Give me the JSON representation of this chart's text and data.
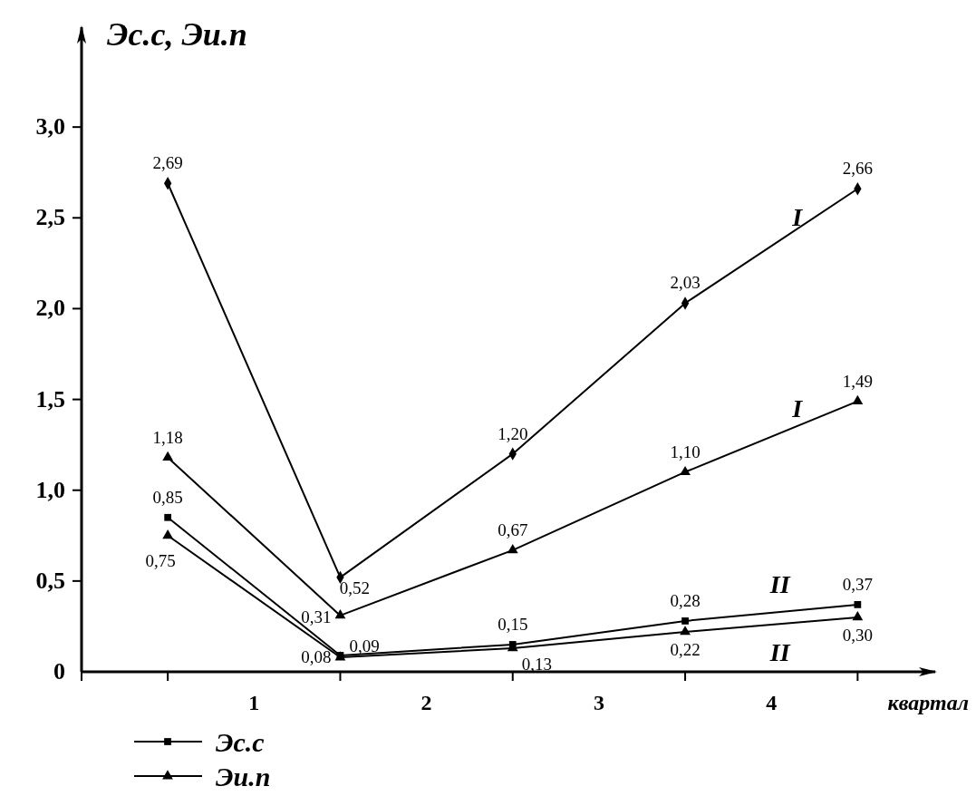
{
  "chart_data": {
    "type": "line",
    "ylabel": "Эс.с, Эи.п",
    "xlabel": "квартал",
    "x": [
      0,
      1,
      2,
      3,
      4
    ],
    "xlim": [
      -0.5,
      4.45
    ],
    "xticks": [
      {
        "value": -0.5,
        "label": null
      },
      {
        "value": 0,
        "label": null
      },
      {
        "value": 0.5,
        "label": "1"
      },
      {
        "value": 1,
        "label": null
      },
      {
        "value": 1.5,
        "label": "2"
      },
      {
        "value": 2,
        "label": null
      },
      {
        "value": 2.5,
        "label": "3"
      },
      {
        "value": 3,
        "label": null
      },
      {
        "value": 3.5,
        "label": "4"
      },
      {
        "value": 4,
        "label": null
      }
    ],
    "ylim": [
      0,
      3.55
    ],
    "yticks": [
      {
        "value": 0,
        "label": "0"
      },
      {
        "value": 0.5,
        "label": "0,5"
      },
      {
        "value": 1,
        "label": "1,0"
      },
      {
        "value": 1.5,
        "label": "1,5"
      },
      {
        "value": 2,
        "label": "2,0"
      },
      {
        "value": 2.5,
        "label": "2,5"
      },
      {
        "value": 3,
        "label": "3,0"
      }
    ],
    "series": [
      {
        "color": "#000000",
        "marker": "diamond",
        "values": [
          2.69,
          0.52,
          1.2,
          2.03,
          2.66
        ],
        "value_labels": [
          "2,69",
          "0,52",
          "1,20",
          "2,03",
          "2,66"
        ]
      },
      {
        "color": "#000000",
        "marker": "triangle",
        "values": [
          1.18,
          0.31,
          0.67,
          1.1,
          1.49
        ],
        "value_labels": [
          "1,18",
          "0,31",
          "0,67",
          "1,10",
          "1,49"
        ]
      },
      {
        "name": "Эс.с",
        "color": "#000000",
        "marker": "square",
        "values": [
          0.85,
          0.09,
          0.15,
          0.28,
          0.37
        ],
        "value_labels": [
          "0,85",
          "0,09",
          "0,15",
          "0,28",
          "0,37"
        ]
      },
      {
        "name": "Эи.п",
        "color": "#000000",
        "marker": "triangle",
        "values": [
          0.75,
          0.08,
          0.13,
          0.22,
          0.3
        ],
        "value_labels": [
          "0,75",
          "0,08",
          "0,13",
          "0,22",
          "0,30"
        ]
      }
    ],
    "legend": "bottom left",
    "grid": false,
    "line_style": "solid",
    "annotations": [
      "I",
      "I",
      "II",
      "II"
    ]
  }
}
